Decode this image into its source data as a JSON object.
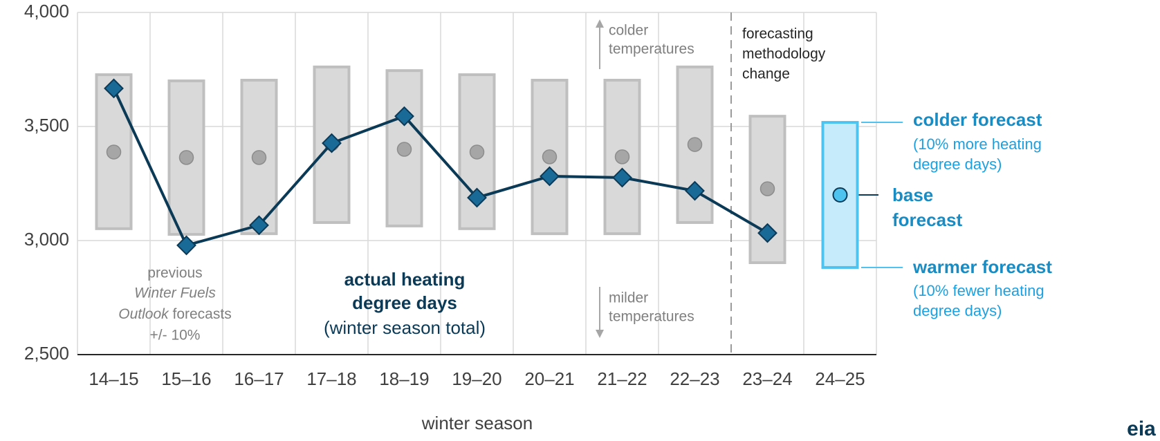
{
  "chart_data": {
    "type": "line",
    "categories": [
      "14–15",
      "15–16",
      "16–17",
      "17–18",
      "18–19",
      "19–20",
      "20–21",
      "21–22",
      "22–23",
      "23–24",
      "24–25"
    ],
    "series": [
      {
        "color": "#1a6a97",
        "values": [
          3667,
          2979,
          3067,
          3427,
          3545,
          3188,
          3282,
          3276,
          3218,
          3033,
          null
        ]
      }
    ],
    "forecast_base": [
      3388,
      3364,
      3364,
      3424,
      3400,
      3388,
      3367,
      3367,
      3421,
      3227,
      3200
    ],
    "forecast_low": [
      3052,
      3027,
      3030,
      3079,
      3064,
      3052,
      3030,
      3030,
      3079,
      2903,
      2882
    ],
    "forecast_high": [
      3727,
      3700,
      3703,
      3761,
      3745,
      3727,
      3703,
      3703,
      3761,
      3545,
      3518
    ],
    "ylim": [
      2500,
      4000
    ],
    "yticks": [
      {
        "value": 2500,
        "label": "2,500"
      },
      {
        "value": 3000,
        "label": "3,000"
      },
      {
        "value": 3500,
        "label": "3,500"
      },
      {
        "value": 4000,
        "label": "4,000"
      }
    ],
    "grid": true,
    "x_label": "winter season",
    "annotations": [
      "previous",
      "Winter Fuels",
      "Outlook",
      " forecasts",
      "+/- 10%",
      "actual heating",
      "degree days",
      "(winter season total)",
      "colder",
      "temperatures",
      "milder",
      "temperatures",
      "forecasting",
      "methodology",
      "change",
      "colder forecast",
      "(10% more heating",
      "degree days)",
      "base",
      "forecast",
      "warmer forecast",
      "(10% fewer heating",
      "degree days)",
      "eia"
    ]
  }
}
